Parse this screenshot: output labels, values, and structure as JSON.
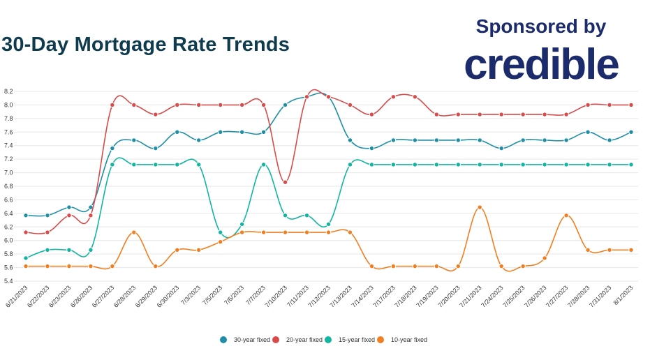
{
  "title": "30-Day Mortgage Rate Trends",
  "sponsor": {
    "label": "Sponsored by",
    "logo_text": "credible"
  },
  "colors": {
    "title": "#0e3b4d",
    "sponsor": "#1b2b6b",
    "grid": "#e6e6e6"
  },
  "chart_data": {
    "type": "line",
    "title": "30-Day Mortgage Rate Trends",
    "xlabel": "",
    "ylabel": "",
    "ylim": [
      5.4,
      8.2
    ],
    "yticks": [
      "8.2",
      "8.0",
      "7.8",
      "7.6",
      "7.4",
      "7.2",
      "7.0",
      "6.8",
      "6.6",
      "6.4",
      "6.2",
      "6.0",
      "5.8",
      "5.6",
      "5.4"
    ],
    "grid": true,
    "legend_position": "bottom",
    "categories": [
      "6/21/2023",
      "6/22/2023",
      "6/23/2023",
      "6/26/2023",
      "6/27/2023",
      "6/28/2023",
      "6/29/2023",
      "6/30/2023",
      "7/3/2023",
      "7/5/2023",
      "7/6/2023",
      "7/7/2023",
      "7/10/2023",
      "7/11/2023",
      "7/12/2023",
      "7/13/2023",
      "7/14/2023",
      "7/17/2023",
      "7/18/2023",
      "7/19/2023",
      "7/20/2023",
      "7/21/2023",
      "7/24/2023",
      "7/25/2023",
      "7/26/2023",
      "7/27/2023",
      "7/28/2023",
      "7/31/2023",
      "8/1/2023"
    ],
    "series": [
      {
        "name": "30-year fixed",
        "color": "#1f8fa5",
        "values": [
          6.37,
          6.37,
          6.49,
          6.49,
          7.36,
          7.48,
          7.36,
          7.6,
          7.48,
          7.6,
          7.6,
          7.6,
          8.0,
          8.12,
          8.12,
          7.48,
          7.36,
          7.48,
          7.48,
          7.48,
          7.48,
          7.48,
          7.36,
          7.48,
          7.48,
          7.48,
          7.6,
          7.48,
          7.6
        ]
      },
      {
        "name": "20-year fixed",
        "color": "#d84b4b",
        "values": [
          6.12,
          6.12,
          6.37,
          6.37,
          8.0,
          8.0,
          7.86,
          8.0,
          8.0,
          8.0,
          8.0,
          8.0,
          6.86,
          8.12,
          8.12,
          8.0,
          7.86,
          8.12,
          8.12,
          7.86,
          7.86,
          7.86,
          7.86,
          7.86,
          7.86,
          7.86,
          8.0,
          8.0,
          8.0
        ]
      },
      {
        "name": "15-year fixed",
        "color": "#12b5a0",
        "values": [
          5.74,
          5.86,
          5.86,
          5.86,
          7.12,
          7.12,
          7.12,
          7.12,
          7.12,
          6.12,
          6.24,
          7.12,
          6.37,
          6.37,
          6.24,
          7.12,
          7.12,
          7.12,
          7.12,
          7.12,
          7.12,
          7.12,
          7.12,
          7.12,
          7.12,
          7.12,
          7.12,
          7.12,
          7.12
        ]
      },
      {
        "name": "10-year fixed",
        "color": "#f07f22",
        "values": [
          5.62,
          5.62,
          5.62,
          5.62,
          5.62,
          6.12,
          5.62,
          5.86,
          5.86,
          5.98,
          6.12,
          6.12,
          6.12,
          6.12,
          6.12,
          6.12,
          5.62,
          5.62,
          5.62,
          5.62,
          5.62,
          6.49,
          5.62,
          5.62,
          5.74,
          6.37,
          5.86,
          5.86,
          5.86
        ]
      }
    ]
  }
}
